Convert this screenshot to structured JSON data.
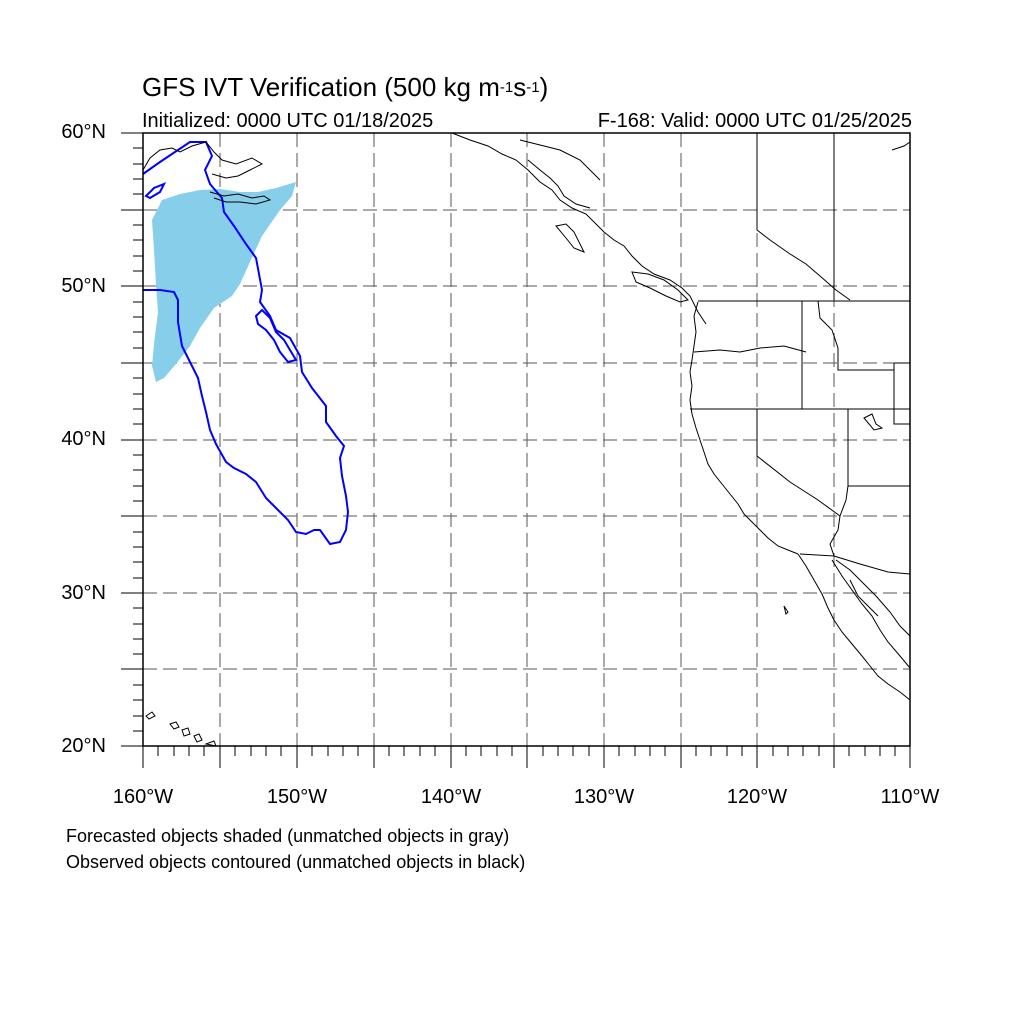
{
  "title": {
    "main": "GFS IVT Verification (500 kg m",
    "exp1": "-1",
    "mid": "s",
    "exp2": "-1",
    "end": ")"
  },
  "initialized": "Initialized: 0000 UTC 01/18/2025",
  "valid": "F-168: Valid: 0000 UTC 01/25/2025",
  "lat_labels": [
    "60°N",
    "50°N",
    "40°N",
    "30°N",
    "20°N"
  ],
  "lon_labels": [
    "160°W",
    "150°W",
    "140°W",
    "130°W",
    "120°W",
    "110°W"
  ],
  "notes": [
    "Forecasted objects shaded (unmatched objects in gray)",
    "Observed objects contoured (unmatched objects in black)"
  ],
  "colors": {
    "forecast_fill": "#87ceeb",
    "observed_contour": "#0000ff",
    "coastline": "#000000",
    "gridline": "#555555"
  },
  "map": {
    "lon_range": [
      -160,
      -110
    ],
    "lat_range": [
      20,
      60
    ],
    "grid_lon_step": 5,
    "grid_lat_step": 5,
    "grid_style": "dashed"
  }
}
